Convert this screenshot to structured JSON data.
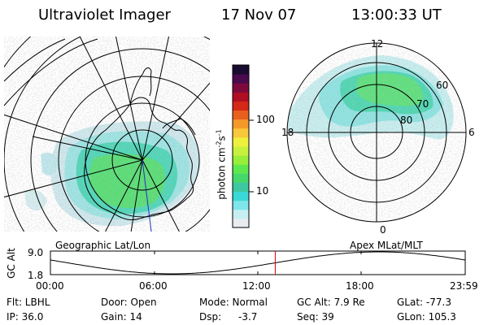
{
  "header": {
    "instrument": "Ultraviolet Imager",
    "date": "17 Nov 07",
    "time": "13:00:33 UT"
  },
  "geo_panel": {
    "caption": "Geographic Lat/Lon"
  },
  "polar_panel": {
    "caption": "Apex MLat/MLT",
    "mlt_labels": [
      "12",
      "18",
      "6",
      "0"
    ],
    "mlat_labels": [
      "60",
      "70",
      "80"
    ]
  },
  "colorbar": {
    "unit_main": "photon cm",
    "unit_exp1": "-2",
    "unit_mid": "s",
    "unit_exp2": "-1",
    "tick_100": "100",
    "tick_10": "10",
    "colors": [
      "#e8ecf0",
      "#c6eff2",
      "#7ee6ea",
      "#3ad8d6",
      "#3ec8a0",
      "#46d86c",
      "#5ee84e",
      "#98ee3a",
      "#c8f03e",
      "#eef03e",
      "#f8c83a",
      "#f49a2a",
      "#e8601e",
      "#d42818",
      "#b00e22",
      "#7e0a3c",
      "#4a0a4e",
      "#1a0c30"
    ],
    "log_min": 0.4,
    "log_max": 2.75
  },
  "altitude": {
    "axis_label": "GC Alt",
    "y_top": "9.0",
    "y_bottom": "1.8",
    "time_ticks": [
      "00:00",
      "06:00",
      "12:00",
      "18:00",
      "23:59"
    ],
    "current_time_hours": 13.009,
    "curve_color": "#000000",
    "marker_color": "#e00000"
  },
  "status": {
    "flt": "Flt: LBHL",
    "ip": "IP: 36.0",
    "door": "Door: Open",
    "gain": "Gain: 14",
    "mode": "Mode: Normal",
    "dsp_label": "Dsp:",
    "dsp_value": "-3.7",
    "gc_alt": "GC Alt: 7.9 Re",
    "seq": "Seq: 39",
    "glat": "GLat: -77.3",
    "glon": "GLon: 105.3"
  }
}
